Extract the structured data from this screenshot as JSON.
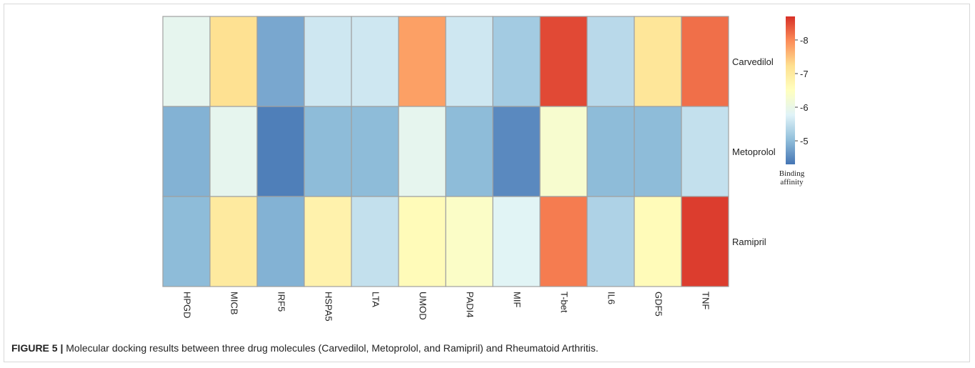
{
  "caption": {
    "label": "FIGURE 5 |",
    "text": " Molecular docking results between three drug molecules (Carvedilol, Metoprolol, and Ramipril) and Rheumatoid Arthritis."
  },
  "chart_data": {
    "type": "heatmap",
    "title": "",
    "columns": [
      "HPGD",
      "MICB",
      "IRF5",
      "HSPA5",
      "LTA",
      "UMOD",
      "PADI4",
      "MIF",
      "T-bet",
      "IL6",
      "GDF5",
      "TNF"
    ],
    "rows": [
      "Carvedilol",
      "Metoprolol",
      "Ramipril"
    ],
    "values": [
      [
        -5.9,
        -7.2,
        -4.8,
        -5.6,
        -5.6,
        -7.8,
        -5.6,
        -5.2,
        -8.5,
        -5.4,
        -7.1,
        -8.2
      ],
      [
        -4.9,
        -5.9,
        -4.4,
        -5.0,
        -5.0,
        -5.9,
        -5.0,
        -4.5,
        -6.3,
        -5.0,
        -5.0,
        -5.5
      ],
      [
        -5.0,
        -7.0,
        -4.9,
        -6.8,
        -5.5,
        -6.6,
        -6.4,
        -5.8,
        -8.1,
        -5.3,
        -6.6,
        -8.6
      ]
    ],
    "colorbar": {
      "title_line1": "Binding",
      "title_line2": "affinity",
      "range": [
        -4.3,
        -8.7
      ],
      "ticks": [
        -8,
        -7,
        -6,
        -5
      ],
      "tick_labels": [
        "-8",
        "-7",
        "-6",
        "-5"
      ],
      "colors": [
        "#4575b4",
        "#91bfdb",
        "#e0f3f8",
        "#ffffbf",
        "#fee090",
        "#fc8d59",
        "#d73027"
      ]
    }
  }
}
